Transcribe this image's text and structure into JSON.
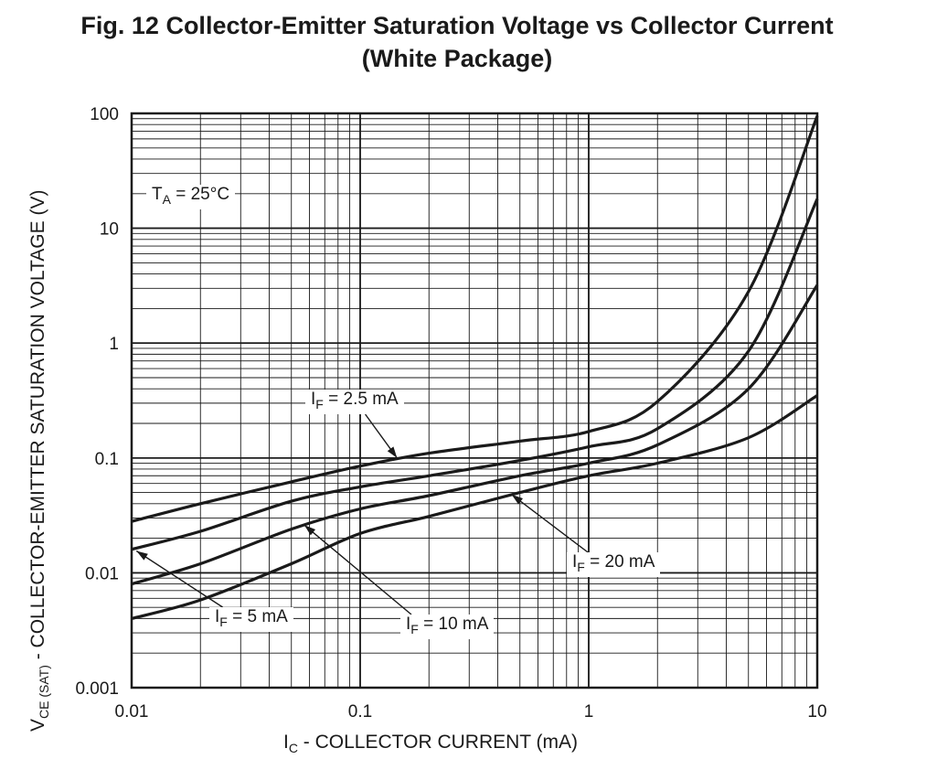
{
  "figure": {
    "title_line1": "Fig. 12  Collector-Emitter Saturation Voltage vs Collector Current",
    "title_line2": "(White Package)"
  },
  "chart_data": {
    "type": "line",
    "title": "Fig. 12  Collector-Emitter Saturation Voltage vs Collector Current (White Package)",
    "xscale": "log",
    "yscale": "log",
    "xlim": [
      0.01,
      10
    ],
    "ylim": [
      0.001,
      100
    ],
    "grid": true,
    "xlabel": {
      "main": "I",
      "sub": "C",
      "rest": " - COLLECTOR CURRENT (mA)"
    },
    "ylabel": {
      "main": "V",
      "sub": "CE (SAT)",
      "rest": " - COLLECTOR-EMITTER SATURATION VOLTAGE (V)"
    },
    "x_ticks": [
      "0.01",
      "0.1",
      "1",
      "10"
    ],
    "x_tick_values": [
      0.01,
      0.1,
      1,
      10
    ],
    "y_ticks": [
      "0.001",
      "0.01",
      "0.1",
      "1",
      "10",
      "100"
    ],
    "y_tick_values": [
      0.001,
      0.01,
      0.1,
      1,
      10,
      100
    ],
    "condition": {
      "main": "T",
      "sub": "A",
      "rest": " = 25°C"
    },
    "series": [
      {
        "name": "I_F = 2.5 mA",
        "x": [
          0.01,
          0.02,
          0.05,
          0.1,
          0.2,
          0.5,
          1,
          2,
          5,
          10
        ],
        "y": [
          0.028,
          0.04,
          0.062,
          0.085,
          0.11,
          0.14,
          0.17,
          0.31,
          2.8,
          95
        ]
      },
      {
        "name": "I_F = 5 mA",
        "x": [
          0.01,
          0.02,
          0.05,
          0.1,
          0.2,
          0.5,
          1,
          2,
          5,
          10
        ],
        "y": [
          0.016,
          0.023,
          0.042,
          0.056,
          0.07,
          0.095,
          0.125,
          0.18,
          0.85,
          18
        ]
      },
      {
        "name": "I_F = 10 mA",
        "x": [
          0.01,
          0.02,
          0.05,
          0.1,
          0.2,
          0.5,
          1,
          2,
          5,
          10
        ],
        "y": [
          0.008,
          0.012,
          0.024,
          0.036,
          0.047,
          0.07,
          0.09,
          0.13,
          0.4,
          3.2
        ]
      },
      {
        "name": "I_F = 20 mA",
        "x": [
          0.01,
          0.02,
          0.05,
          0.1,
          0.2,
          0.5,
          1,
          2,
          5,
          10
        ],
        "y": [
          0.004,
          0.0058,
          0.012,
          0.022,
          0.031,
          0.05,
          0.07,
          0.09,
          0.15,
          0.35
        ]
      }
    ],
    "annotations": [
      {
        "series": "I_F = 2.5 mA",
        "main": "I",
        "sub": "F",
        "rest": " = 2.5 mA",
        "arrow_to": [
          0.145,
          0.1
        ]
      },
      {
        "series": "I_F = 5 mA",
        "main": "I",
        "sub": "F",
        "rest": " = 5 mA",
        "arrow_to": [
          0.0105,
          0.0155
        ]
      },
      {
        "series": "I_F = 10 mA",
        "main": "I",
        "sub": "F",
        "rest": " = 10 mA",
        "arrow_to": [
          0.057,
          0.026
        ]
      },
      {
        "series": "I_F = 20 mA",
        "main": "I",
        "sub": "F",
        "rest": " = 20 mA",
        "arrow_to": [
          0.46,
          0.048
        ]
      }
    ]
  }
}
